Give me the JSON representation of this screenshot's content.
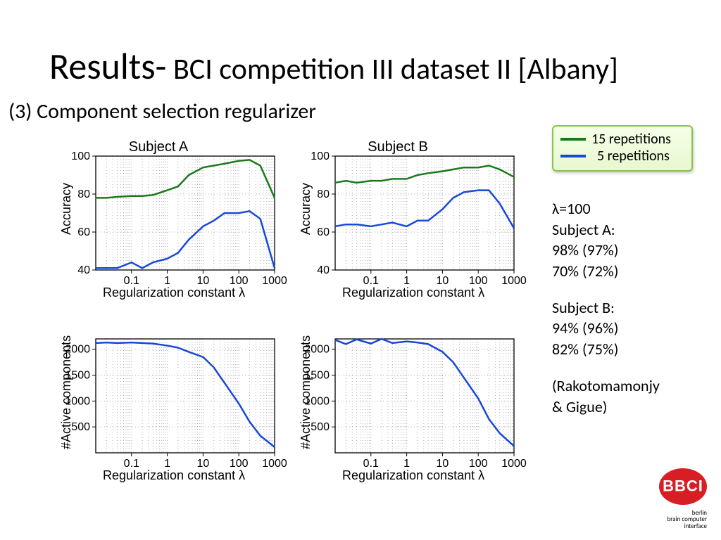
{
  "title_main": "Results-",
  "title_rest": " BCI competition III dataset II [Albany]",
  "subtitle": "(3) Component selection regularizer",
  "legend": {
    "line1": "15 repetitions",
    "line2": "5 repetitions",
    "color1": "#1a7a1a",
    "color2": "#1848d8"
  },
  "side": {
    "l1": "λ=100",
    "l2": "Subject A:",
    "l3": "98%  (97%)",
    "l4": "70%  (72%)",
    "l5": "Subject B:",
    "l6": "94%  (96%)",
    "l7": "82%  (75%)",
    "l8": "(Rakotomamonjy",
    "l9": " & Gigue)"
  },
  "logo": {
    "text": "BBCI",
    "sub1": "berlin",
    "sub2": "brain computer",
    "sub3": "interface"
  },
  "charts": {
    "colors": {
      "green": "#1a7a1a",
      "blue": "#1848d8",
      "grid": "#b0b0b0",
      "axis": "#000000",
      "bg": "#ffffff"
    },
    "line_width": 2.5,
    "x": {
      "label": "Regularization constant λ",
      "ticks": [
        "0.1",
        "1",
        "10",
        "100",
        "1000"
      ],
      "log_min": -2,
      "log_max": 3
    },
    "subjA_acc": {
      "title": "Subject A",
      "ylabel": "Accuracy",
      "ylim": [
        40,
        100
      ],
      "yticks": [
        40,
        60,
        80,
        100
      ],
      "green": {
        "logx": [
          -2,
          -1.7,
          -1.4,
          -1,
          -0.7,
          -0.4,
          0,
          0.3,
          0.6,
          1,
          1.3,
          1.6,
          2,
          2.3,
          2.6,
          3
        ],
        "y": [
          78,
          78,
          78.5,
          79,
          79,
          79.5,
          82,
          84,
          90,
          94,
          95,
          96,
          97.5,
          98,
          95,
          78
        ]
      },
      "blue": {
        "logx": [
          -2,
          -1.7,
          -1.4,
          -1,
          -0.7,
          -0.4,
          0,
          0.3,
          0.6,
          1,
          1.3,
          1.6,
          2,
          2.3,
          2.6,
          3
        ],
        "y": [
          41,
          41,
          41,
          44,
          41,
          44,
          46,
          49,
          56,
          63,
          66,
          70,
          70,
          71,
          67,
          41
        ]
      }
    },
    "subjB_acc": {
      "title": "Subject B",
      "ylabel": "Accuracy",
      "ylim": [
        40,
        100
      ],
      "yticks": [
        40,
        60,
        80,
        100
      ],
      "green": {
        "logx": [
          -2,
          -1.7,
          -1.4,
          -1,
          -0.7,
          -0.4,
          0,
          0.3,
          0.6,
          1,
          1.3,
          1.6,
          2,
          2.3,
          2.6,
          3
        ],
        "y": [
          86,
          87,
          86,
          87,
          87,
          88,
          88,
          90,
          91,
          92,
          93,
          94,
          94,
          95,
          93,
          89
        ]
      },
      "blue": {
        "logx": [
          -2,
          -1.7,
          -1.4,
          -1,
          -0.7,
          -0.4,
          0,
          0.3,
          0.6,
          1,
          1.3,
          1.6,
          2,
          2.3,
          2.6,
          3
        ],
        "y": [
          63,
          64,
          64,
          63,
          64,
          65,
          63,
          66,
          66,
          72,
          78,
          81,
          82,
          82,
          75,
          62
        ]
      }
    },
    "subjA_comp": {
      "ylabel": "#Active components",
      "ylim": [
        0,
        2200
      ],
      "yticks": [
        500,
        1000,
        1500,
        2000
      ],
      "blue": {
        "logx": [
          -2,
          -1.7,
          -1.4,
          -1,
          -0.7,
          -0.4,
          0,
          0.3,
          0.6,
          1,
          1.3,
          1.6,
          2,
          2.3,
          2.6,
          3
        ],
        "y": [
          2120,
          2130,
          2120,
          2130,
          2120,
          2110,
          2070,
          2030,
          1950,
          1850,
          1650,
          1350,
          950,
          600,
          330,
          110
        ]
      }
    },
    "subjB_comp": {
      "ylabel": "#Active components",
      "ylim": [
        0,
        2200
      ],
      "yticks": [
        500,
        1000,
        1500,
        2000
      ],
      "blue": {
        "logx": [
          -2,
          -1.7,
          -1.4,
          -1,
          -0.7,
          -0.4,
          0,
          0.3,
          0.6,
          1,
          1.3,
          1.6,
          2,
          2.3,
          2.6,
          3
        ],
        "y": [
          2180,
          2100,
          2190,
          2110,
          2200,
          2120,
          2150,
          2130,
          2100,
          1950,
          1750,
          1450,
          1050,
          650,
          380,
          130
        ]
      }
    }
  }
}
